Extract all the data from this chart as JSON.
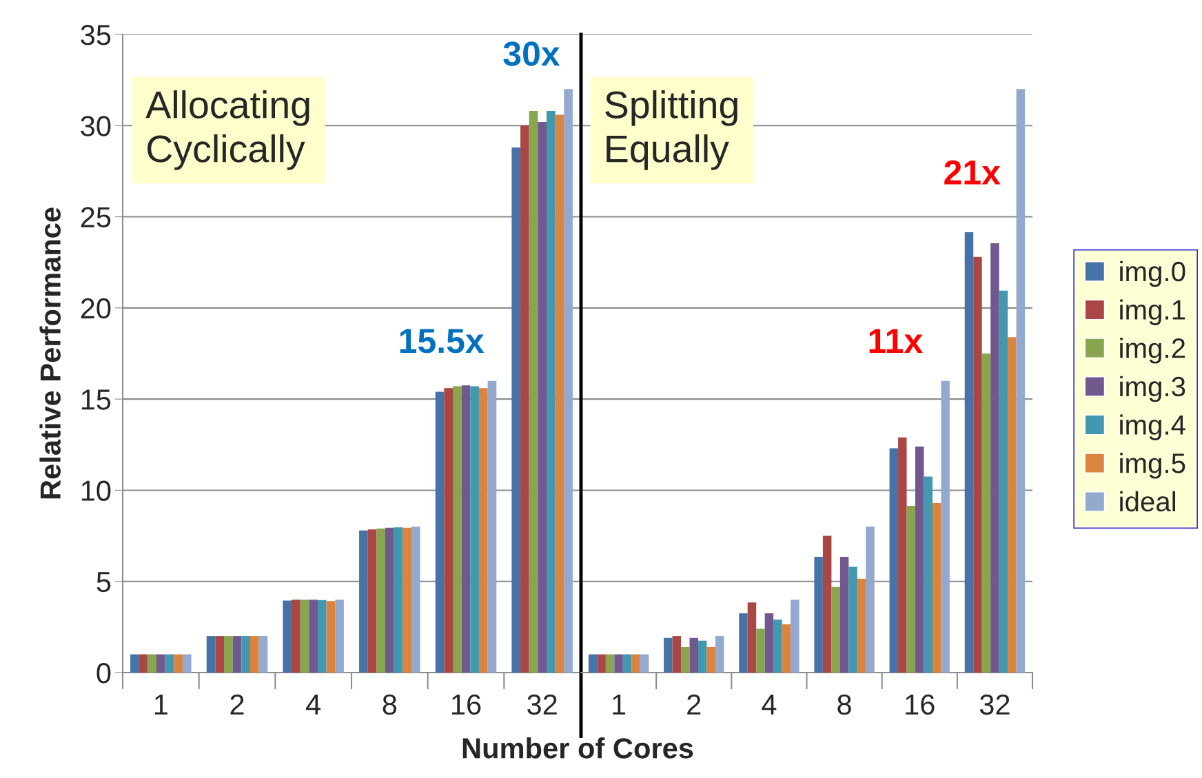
{
  "chart_data": [
    {
      "type": "bar",
      "ylabel": "Relative Performance",
      "xlabel": "Number of Cores",
      "categories": [
        "1",
        "2",
        "4",
        "8",
        "16",
        "32"
      ],
      "ylim": [
        0,
        35
      ],
      "yticks": [
        0,
        5,
        10,
        15,
        20,
        25,
        30,
        35
      ],
      "grid": "y",
      "tick_labels": true,
      "annotations": [
        "Allocating\nCyclically",
        "15.5x",
        "30x"
      ],
      "legend": "right",
      "series": [
        {
          "name": "img.0",
          "color": "#4572a7",
          "values": [
            1,
            2,
            3.95,
            7.8,
            15.4,
            28.8
          ]
        },
        {
          "name": "img.1",
          "color": "#aa4643",
          "values": [
            1,
            2,
            4,
            7.85,
            15.6,
            30.0
          ]
        },
        {
          "name": "img.2",
          "color": "#89a54e",
          "values": [
            1,
            2,
            4,
            7.9,
            15.7,
            30.8
          ]
        },
        {
          "name": "img.3",
          "color": "#71588f",
          "values": [
            1,
            2,
            4,
            7.95,
            15.75,
            30.2
          ]
        },
        {
          "name": "img.4",
          "color": "#4198af",
          "values": [
            1,
            2,
            3.98,
            7.97,
            15.7,
            30.8
          ]
        },
        {
          "name": "img.5",
          "color": "#db843d",
          "values": [
            1,
            2,
            3.92,
            7.95,
            15.6,
            30.6
          ]
        },
        {
          "name": "ideal",
          "color": "#93a9cf",
          "values": [
            1,
            2,
            4,
            8,
            16,
            32
          ]
        }
      ]
    },
    {
      "type": "bar",
      "categories": [
        "1",
        "2",
        "4",
        "8",
        "16",
        "32"
      ],
      "ylim": [
        0,
        35
      ],
      "yticks": [
        0,
        5,
        10,
        15,
        20,
        25,
        30,
        35
      ],
      "grid": "y",
      "tick_labels": "x",
      "annotations": [
        "Splitting\nEqually",
        "11x",
        "21x"
      ],
      "series": [
        {
          "color": "#4572a7",
          "values": [
            1,
            1.9,
            3.25,
            6.35,
            12.3,
            24.15
          ]
        },
        {
          "color": "#aa4643",
          "values": [
            1,
            2.0,
            3.85,
            7.5,
            12.9,
            22.8
          ]
        },
        {
          "color": "#89a54e",
          "values": [
            1,
            1.4,
            2.4,
            4.7,
            9.15,
            17.5
          ]
        },
        {
          "color": "#71588f",
          "values": [
            1,
            1.9,
            3.25,
            6.35,
            12.4,
            23.55
          ]
        },
        {
          "color": "#4198af",
          "values": [
            1,
            1.75,
            2.9,
            5.8,
            10.75,
            20.95
          ]
        },
        {
          "color": "#db843d",
          "values": [
            1,
            1.4,
            2.65,
            5.15,
            9.3,
            18.4
          ]
        },
        {
          "color": "#93a9cf",
          "values": [
            1,
            2.0,
            4.0,
            8,
            16,
            32
          ]
        }
      ]
    }
  ]
}
